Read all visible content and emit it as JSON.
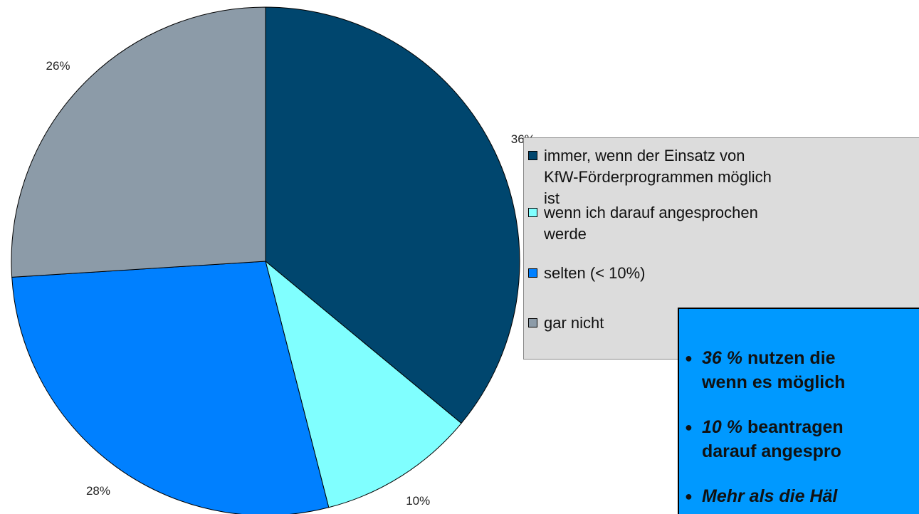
{
  "chart_data": {
    "type": "pie",
    "series": [
      {
        "name": "immer, wenn der Einsatz von KfW-Förderprogrammen möglich ist",
        "color": "#00466e"
      },
      {
        "name": "wenn ich darauf angesprochen werde",
        "color": "#80ffff"
      },
      {
        "name": "selten (< 10%)",
        "color": "#0080ff"
      },
      {
        "name": "gar nicht",
        "color": "#8c9ba8"
      }
    ],
    "values": [
      36,
      10,
      28,
      26
    ],
    "value_labels": [
      "36%",
      "10%",
      "28%",
      "26%"
    ],
    "legend": "right",
    "annotation": {
      "bullets": [
        {
          "lead": "36 %",
          "lines": [
            "nutzen die",
            "wenn es möglich"
          ]
        },
        {
          "lead": "10 %",
          "lines": [
            "beantragen",
            "darauf angespro"
          ]
        },
        {
          "lead": "Mehr als die Häl",
          "lines": []
        }
      ]
    }
  }
}
